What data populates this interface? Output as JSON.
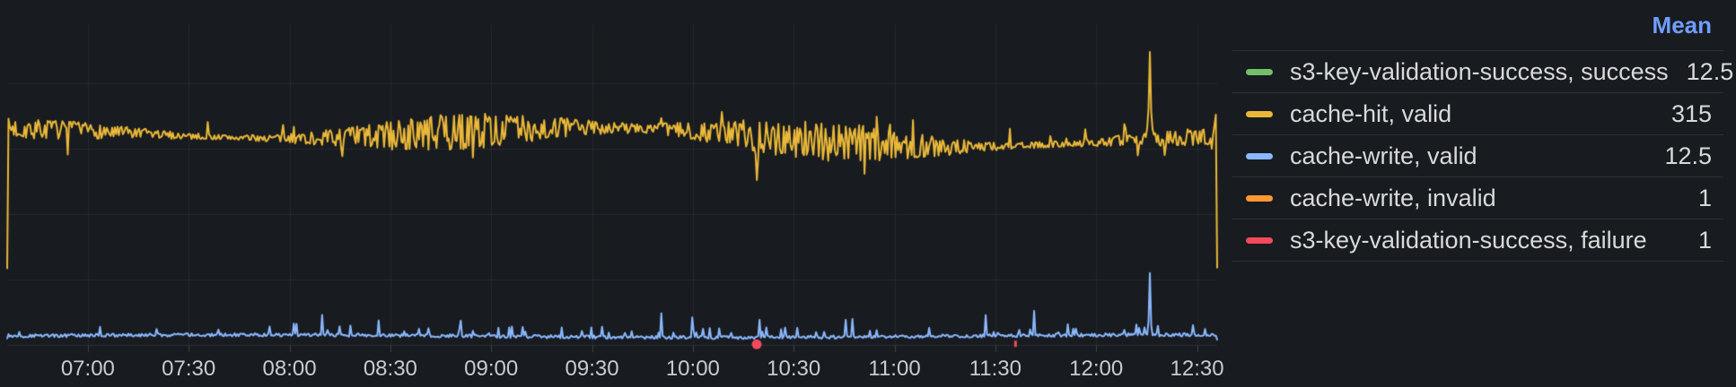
{
  "panel": {
    "background": "#181b1f",
    "grid_color": "rgba(204,204,220,0.07)",
    "axis_line_color": "rgba(204,204,220,0.12)",
    "tick_color": "rgba(204,204,220,0.22)",
    "axis_text_color": "#c9cad2"
  },
  "legend": {
    "header": "Mean",
    "header_color": "#6E9FFF",
    "rows": [
      {
        "label": "s3-key-validation-success, success",
        "color": "#73BF69",
        "mean": "12.5"
      },
      {
        "label": "cache-hit, valid",
        "color": "#EAB839",
        "mean": "315"
      },
      {
        "label": "cache-write, valid",
        "color": "#8AB8FF",
        "mean": "12.5"
      },
      {
        "label": "cache-write, invalid",
        "color": "#FF9830",
        "mean": "1"
      },
      {
        "label": "s3-key-validation-success, failure",
        "color": "#F2495C",
        "mean": "1"
      }
    ]
  },
  "chart_data": {
    "type": "line",
    "title": "",
    "xlabel": "",
    "ylabel": "",
    "x_ticks": [
      "07:00",
      "07:30",
      "08:00",
      "08:30",
      "09:00",
      "09:30",
      "10:00",
      "10:30",
      "11:00",
      "11:30",
      "12:00",
      "12:30"
    ],
    "time_domain": [
      "06:36",
      "12:36"
    ],
    "y_domain": [
      0,
      490
    ],
    "y_gridline_values": [
      0,
      100,
      200,
      300,
      400
    ],
    "grid": true,
    "legend_position": "right-table",
    "legend_calcs": [
      "Mean"
    ],
    "series": [
      {
        "name": "s3-key-validation-success, success",
        "color": "#73BF69",
        "mean": 12.5,
        "visible_in_plot": false
      },
      {
        "name": "cache-hit, valid",
        "color": "#EAB839",
        "mean": 315,
        "visible_in_plot": true,
        "profile": {
          "base": 318,
          "noise_amp": 30,
          "start_value": 117,
          "dip": {
            "time": "10:19",
            "value": 252
          },
          "spike": {
            "time": "12:16",
            "value": 448
          },
          "end_value": 118
        }
      },
      {
        "name": "cache-write, valid",
        "color": "#8AB8FF",
        "mean": 12.5,
        "visible_in_plot": true,
        "profile": {
          "base": 12,
          "noise_amp": 5,
          "start_value": 10,
          "spike": {
            "time": "12:16",
            "value": 110
          },
          "end_value": 8
        }
      },
      {
        "name": "cache-write, invalid",
        "color": "#FF9830",
        "mean": 1,
        "visible_in_plot": false
      },
      {
        "name": "s3-key-validation-success, failure",
        "color": "#F2495C",
        "mean": 1,
        "visible_in_plot": true,
        "points": [
          {
            "time": "10:19",
            "value": 1,
            "marker": "dot"
          },
          {
            "time": "11:36",
            "value": 1,
            "marker": "dash"
          }
        ]
      }
    ]
  }
}
